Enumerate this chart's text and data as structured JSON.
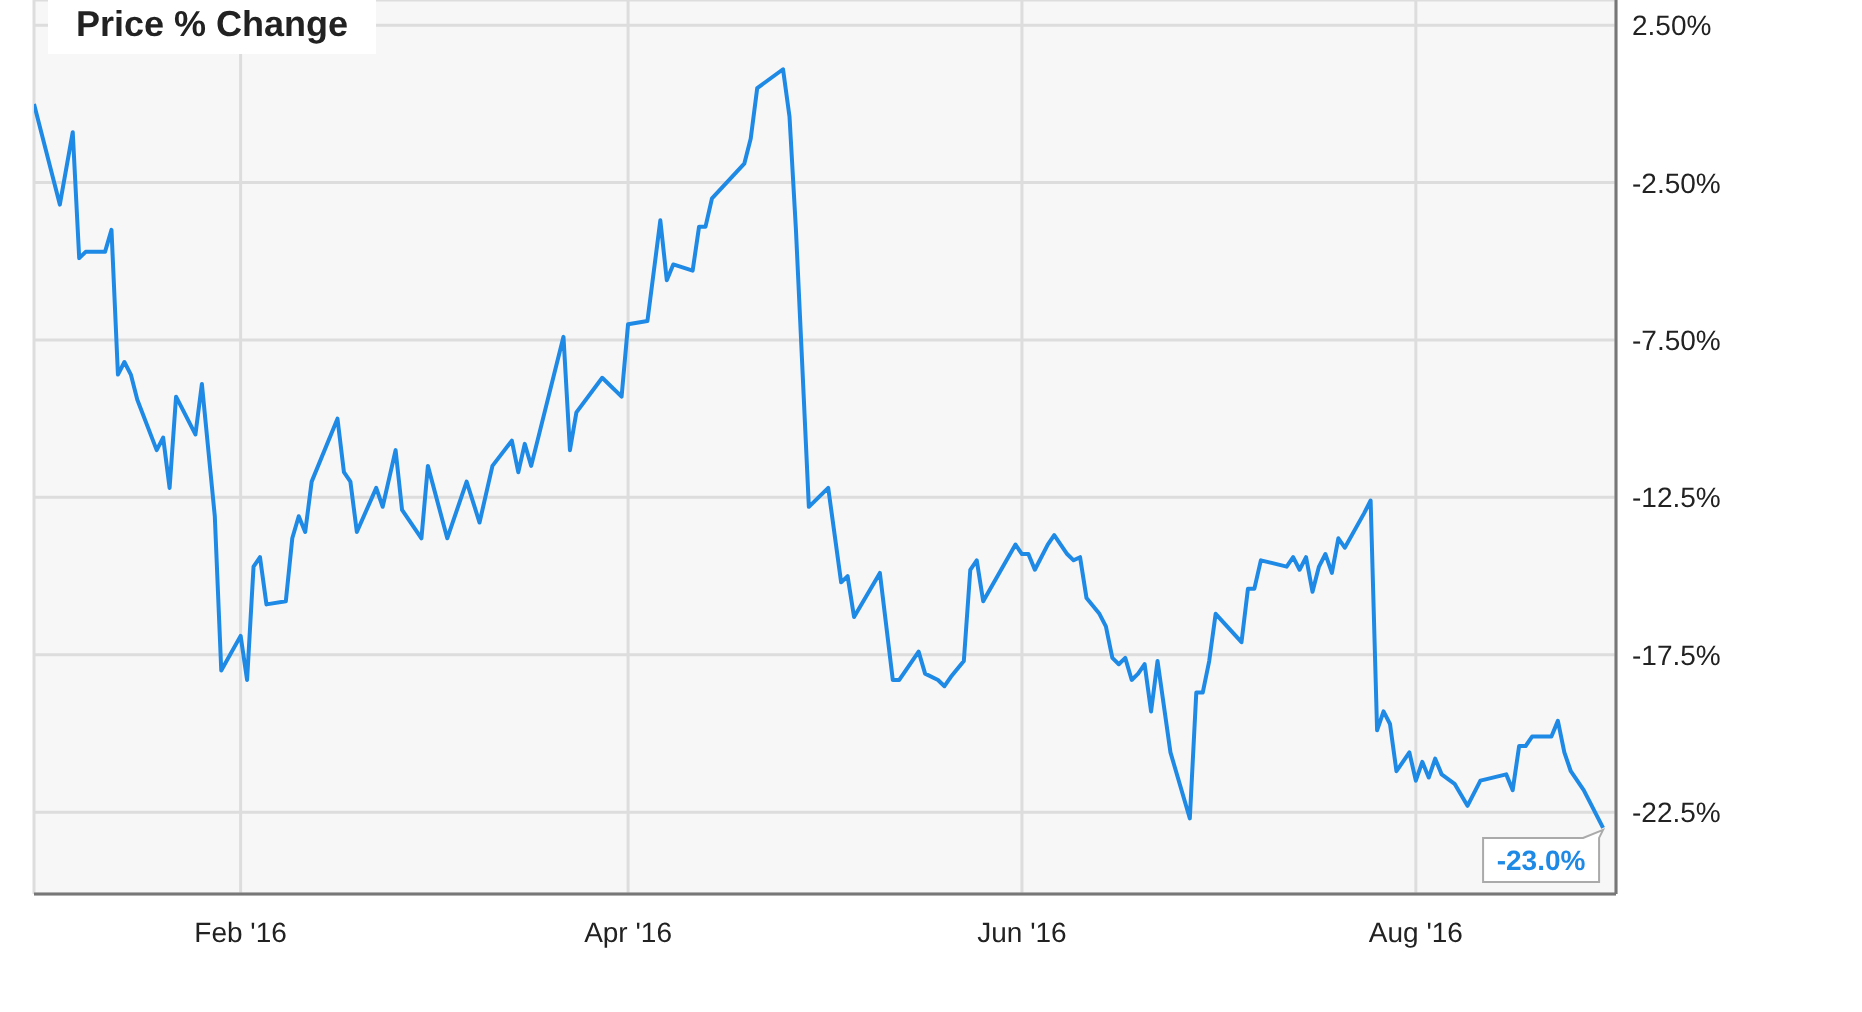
{
  "chart_data": {
    "type": "line",
    "title": "Price % Change",
    "x": [
      "2015-12-31",
      "2016-01-04",
      "2016-01-06",
      "2016-01-07",
      "2016-01-08",
      "2016-01-11",
      "2016-01-12",
      "2016-01-13",
      "2016-01-14",
      "2016-01-15",
      "2016-01-16",
      "2016-01-19",
      "2016-01-20",
      "2016-01-21",
      "2016-01-22",
      "2016-01-25",
      "2016-01-26",
      "2016-01-28",
      "2016-01-29",
      "2016-02-01",
      "2016-02-02",
      "2016-02-03",
      "2016-02-04",
      "2016-02-05",
      "2016-02-08",
      "2016-02-09",
      "2016-02-10",
      "2016-02-11",
      "2016-02-12",
      "2016-02-16",
      "2016-02-17",
      "2016-02-18",
      "2016-02-19",
      "2016-02-22",
      "2016-02-23",
      "2016-02-25",
      "2016-02-26",
      "2016-02-29",
      "2016-03-01",
      "2016-03-04",
      "2016-03-07",
      "2016-03-09",
      "2016-03-11",
      "2016-03-14",
      "2016-03-15",
      "2016-03-16",
      "2016-03-17",
      "2016-03-22",
      "2016-03-23",
      "2016-03-24",
      "2016-03-28",
      "2016-03-31",
      "2016-04-01",
      "2016-04-04",
      "2016-04-06",
      "2016-04-07",
      "2016-04-08",
      "2016-04-11",
      "2016-04-12",
      "2016-04-13",
      "2016-04-14",
      "2016-04-19",
      "2016-04-20",
      "2016-04-21",
      "2016-04-25",
      "2016-04-26",
      "2016-04-27",
      "2016-04-29",
      "2016-05-02",
      "2016-05-04",
      "2016-05-05",
      "2016-05-06",
      "2016-05-10",
      "2016-05-12",
      "2016-05-13",
      "2016-05-16",
      "2016-05-17",
      "2016-05-19",
      "2016-05-20",
      "2016-05-21",
      "2016-05-23",
      "2016-05-24",
      "2016-05-25",
      "2016-05-26",
      "2016-05-31",
      "2016-06-01",
      "2016-06-02",
      "2016-06-03",
      "2016-06-05",
      "2016-06-06",
      "2016-06-08",
      "2016-06-09",
      "2016-06-10",
      "2016-06-11",
      "2016-06-13",
      "2016-06-14",
      "2016-06-15",
      "2016-06-16",
      "2016-06-17",
      "2016-06-18",
      "2016-06-19",
      "2016-06-20",
      "2016-06-21",
      "2016-06-22",
      "2016-06-24",
      "2016-06-27",
      "2016-06-28",
      "2016-06-29",
      "2016-06-30",
      "2016-07-01",
      "2016-07-05",
      "2016-07-06",
      "2016-07-07",
      "2016-07-08",
      "2016-07-12",
      "2016-07-13",
      "2016-07-14",
      "2016-07-15",
      "2016-07-16",
      "2016-07-17",
      "2016-07-18",
      "2016-07-19",
      "2016-07-20",
      "2016-07-21",
      "2016-07-24",
      "2016-07-25",
      "2016-07-26",
      "2016-07-27",
      "2016-07-28",
      "2016-07-29",
      "2016-07-31",
      "2016-08-01",
      "2016-08-02",
      "2016-08-03",
      "2016-08-04",
      "2016-08-05",
      "2016-08-07",
      "2016-08-09",
      "2016-08-11",
      "2016-08-15",
      "2016-08-16",
      "2016-08-17",
      "2016-08-18",
      "2016-08-19",
      "2016-08-22",
      "2016-08-23",
      "2016-08-24",
      "2016-08-25",
      "2016-08-27",
      "2016-08-30"
    ],
    "series": [
      {
        "color": "#1e8ae6",
        "values": [
          0.0,
          -3.2,
          -0.9,
          -4.9,
          -4.7,
          -4.7,
          -4.0,
          -8.6,
          -8.2,
          -8.6,
          -9.4,
          -11.0,
          -10.6,
          -12.2,
          -9.3,
          -10.5,
          -8.9,
          -13.1,
          -18.0,
          -16.9,
          -18.3,
          -14.7,
          -14.4,
          -15.9,
          -15.8,
          -13.8,
          -13.1,
          -13.6,
          -12.0,
          -10.0,
          -11.7,
          -12.0,
          -13.6,
          -12.2,
          -12.8,
          -11.0,
          -12.9,
          -13.8,
          -11.5,
          -13.8,
          -12.0,
          -13.3,
          -11.5,
          -10.7,
          -11.7,
          -10.8,
          -11.5,
          -7.4,
          -11.0,
          -9.8,
          -8.7,
          -9.3,
          -7.0,
          -6.9,
          -3.7,
          -5.6,
          -5.1,
          -5.3,
          -3.9,
          -3.9,
          -3.0,
          -1.9,
          -1.1,
          0.5,
          1.1,
          -0.4,
          -4.0,
          -12.8,
          -12.2,
          -15.2,
          -15.0,
          -16.3,
          -14.9,
          -18.3,
          -18.3,
          -17.4,
          -18.1,
          -18.3,
          -18.5,
          -18.2,
          -17.7,
          -14.8,
          -14.5,
          -15.8,
          -14.0,
          -14.3,
          -14.3,
          -14.8,
          -14.0,
          -13.7,
          -14.3,
          -14.5,
          -14.4,
          -15.7,
          -16.2,
          -16.6,
          -17.6,
          -17.8,
          -17.6,
          -18.3,
          -18.1,
          -17.8,
          -19.3,
          -17.7,
          -20.6,
          -22.7,
          -18.7,
          -18.7,
          -17.7,
          -16.2,
          -17.1,
          -15.4,
          -15.4,
          -14.5,
          -14.7,
          -14.4,
          -14.8,
          -14.4,
          -15.5,
          -14.7,
          -14.3,
          -14.9,
          -13.8,
          -14.1,
          -13.0,
          -12.6,
          -19.9,
          -19.3,
          -19.7,
          -21.2,
          -20.6,
          -21.5,
          -20.9,
          -21.4,
          -20.8,
          -21.3,
          -21.6,
          -22.3,
          -21.5,
          -21.3,
          -21.8,
          -20.4,
          -20.4,
          -20.1,
          -20.1,
          -19.6,
          -20.6,
          -21.2,
          -21.8,
          -23.0
        ]
      }
    ],
    "xlim": [
      "2015-12-31",
      "2016-09-01"
    ],
    "xticks": [
      {
        "value": "2016-02-01",
        "label": "Feb '16"
      },
      {
        "value": "2016-04-01",
        "label": "Apr '16"
      },
      {
        "value": "2016-06-01",
        "label": "Jun '16"
      },
      {
        "value": "2016-08-01",
        "label": "Aug '16"
      }
    ],
    "ylim": [
      -25.1,
      3.3
    ],
    "yticks": [
      {
        "value": 2.5,
        "label": "2.50%"
      },
      {
        "value": -2.5,
        "label": "-2.50%"
      },
      {
        "value": -7.5,
        "label": "-7.50%"
      },
      {
        "value": -12.5,
        "label": "-12.5%"
      },
      {
        "value": -17.5,
        "label": "-17.5%"
      },
      {
        "value": -22.5,
        "label": "-22.5%"
      }
    ],
    "annotations": [
      {
        "text": "-23.0%",
        "x": "2016-08-30",
        "y": -23.0
      }
    ],
    "grid": true,
    "legend": false,
    "marker": "none",
    "line_style": "solid"
  }
}
